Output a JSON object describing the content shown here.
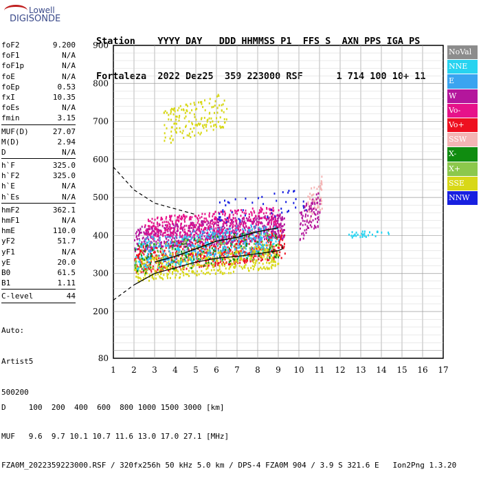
{
  "logo": {
    "line1": "Lowell",
    "line2": "DIGISONDE"
  },
  "header": {
    "row1": "Station    YYYY DAY   DDD HHMMSS P1  FFS S  AXN PPS IGA PS",
    "row2": "Fortaleza  2022 Dez25  359 223000 RSF      1 714 100 10+ 11"
  },
  "params": {
    "group1": [
      {
        "k": "foF2",
        "v": "9.200"
      },
      {
        "k": "foF1",
        "v": "N/A"
      },
      {
        "k": "foF1p",
        "v": "N/A"
      },
      {
        "k": "foE",
        "v": "N/A"
      },
      {
        "k": "foEp",
        "v": "0.53"
      },
      {
        "k": "fxI",
        "v": "10.35"
      },
      {
        "k": "foEs",
        "v": "N/A"
      },
      {
        "k": "fmin",
        "v": "3.15"
      }
    ],
    "group2": [
      {
        "k": "MUF(D)",
        "v": "27.07"
      },
      {
        "k": "M(D)",
        "v": "2.94"
      },
      {
        "k": "D",
        "v": "N/A"
      }
    ],
    "group3": [
      {
        "k": "h`F",
        "v": "325.0"
      },
      {
        "k": "h`F2",
        "v": "325.0"
      },
      {
        "k": "h`E",
        "v": "N/A"
      },
      {
        "k": "h`Es",
        "v": "N/A"
      }
    ],
    "group4": [
      {
        "k": "hmF2",
        "v": "362.1"
      },
      {
        "k": "hmF1",
        "v": "N/A"
      },
      {
        "k": "hmE",
        "v": "110.0"
      },
      {
        "k": "yF2",
        "v": "51.7"
      },
      {
        "k": "yF1",
        "v": "N/A"
      },
      {
        "k": "yE",
        "v": "20.0"
      },
      {
        "k": "B0",
        "v": "61.5"
      },
      {
        "k": "B1",
        "v": "1.11"
      }
    ],
    "group5": [
      {
        "k": "C-level",
        "v": "44"
      }
    ],
    "auto_lines": [
      "Auto:",
      "Artist5",
      "500200"
    ]
  },
  "legend": [
    {
      "label": "NoVal",
      "color": "#8c8c8c"
    },
    {
      "label": "NNE",
      "color": "#27d3f0"
    },
    {
      "label": "E",
      "color": "#3aa4f0"
    },
    {
      "label": "W",
      "color": "#b4169c"
    },
    {
      "label": "Vo-",
      "color": "#e6128a"
    },
    {
      "label": "Vo+",
      "color": "#ee1020"
    },
    {
      "label": "SSW",
      "color": "#f4b4b4"
    },
    {
      "label": "X-",
      "color": "#108c10"
    },
    {
      "label": "X+",
      "color": "#8cc84c"
    },
    {
      "label": "SSE",
      "color": "#d8d818"
    },
    {
      "label": "NNW",
      "color": "#1820e0"
    }
  ],
  "footer": {
    "line1": "D     100  200  400  600  800 1000 1500 3000 [km]",
    "line2": "MUF   9.6  9.7 10.1 10.7 11.6 13.0 17.0 27.1 [MHz]",
    "line3": "FZA0M_2022359223000.RSF / 320fx256h 50 kHz 5.0 km / DPS-4 FZA0M 904 / 3.9 S 321.6 E   Ion2Png 1.3.20"
  },
  "chart_data": {
    "type": "scatter",
    "xlim": [
      1,
      17
    ],
    "ylim": [
      80,
      900
    ],
    "x_ticks": [
      1,
      2,
      3,
      4,
      5,
      6,
      7,
      8,
      9,
      10,
      11,
      12,
      13,
      14,
      15,
      16,
      17
    ],
    "y_ticks": [
      80,
      200,
      300,
      400,
      500,
      600,
      700,
      800,
      900
    ],
    "grid": true,
    "clusters": [
      {
        "name": "Vo+",
        "color": "#ee1020",
        "x": [
          2.0,
          9.3
        ],
        "y": [
          300,
          420
        ],
        "n": 700
      },
      {
        "name": "W",
        "color": "#b4169c",
        "x": [
          2.0,
          9.3
        ],
        "y": [
          360,
          460
        ],
        "n": 650
      },
      {
        "name": "Vo-",
        "color": "#e6128a",
        "x": [
          2.5,
          9.0
        ],
        "y": [
          390,
          480
        ],
        "n": 400
      },
      {
        "name": "SSE",
        "color": "#d8d818",
        "x": [
          2.0,
          9.0
        ],
        "y": [
          280,
          380
        ],
        "n": 450
      },
      {
        "name": "NNE",
        "color": "#27d3f0",
        "x": [
          2.0,
          9.0
        ],
        "y": [
          310,
          430
        ],
        "n": 250
      },
      {
        "name": "E",
        "color": "#3aa4f0",
        "x": [
          2.5,
          8.5
        ],
        "y": [
          320,
          440
        ],
        "n": 220
      },
      {
        "name": "X-",
        "color": "#108c10",
        "x": [
          2.0,
          9.0
        ],
        "y": [
          300,
          420
        ],
        "n": 120
      },
      {
        "name": "X+",
        "color": "#8cc84c",
        "x": [
          2.0,
          9.0
        ],
        "y": [
          300,
          420
        ],
        "n": 100
      },
      {
        "name": "SSW",
        "color": "#f4b4b4",
        "x": [
          10.3,
          11.1
        ],
        "y": [
          420,
          560
        ],
        "n": 60
      },
      {
        "name": "NNW",
        "color": "#1820e0",
        "x": [
          6.0,
          10.5
        ],
        "y": [
          430,
          530
        ],
        "n": 50
      },
      {
        "name": "SSE",
        "color": "#d8d818",
        "x": [
          3.4,
          6.5
        ],
        "y": [
          640,
          780
        ],
        "n": 160
      },
      {
        "name": "W",
        "color": "#b4169c",
        "x": [
          10.0,
          11.0
        ],
        "y": [
          380,
          520
        ],
        "n": 90
      },
      {
        "name": "NNE",
        "color": "#27d3f0",
        "x": [
          12.4,
          14.5
        ],
        "y": [
          395,
          420
        ],
        "n": 30
      }
    ],
    "trace": {
      "x": [
        3.0,
        4.0,
        5.0,
        6.0,
        7.0,
        8.0,
        9.0
      ],
      "y": [
        330,
        345,
        365,
        385,
        395,
        410,
        420
      ]
    },
    "dashed_curve": {
      "x": [
        1.0,
        1.5,
        2.0,
        3.0,
        4.0,
        5.0
      ],
      "y": [
        580,
        550,
        520,
        485,
        470,
        455
      ]
    },
    "dashed_curve_lower": {
      "x": [
        1.0,
        2.0
      ],
      "y": [
        230,
        270
      ]
    },
    "solid_curve": {
      "x": [
        2.0,
        3.0,
        4.0,
        5.0,
        6.0,
        7.0,
        8.0,
        9.0,
        9.2,
        9.2
      ],
      "y": [
        270,
        300,
        315,
        330,
        340,
        345,
        352,
        360,
        365,
        375
      ]
    }
  }
}
